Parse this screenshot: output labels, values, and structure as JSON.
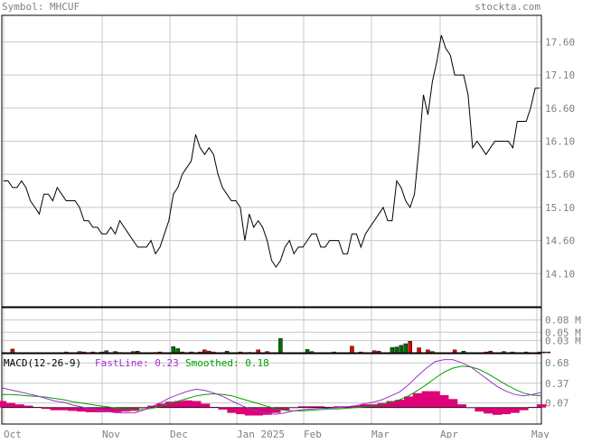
{
  "header": {
    "symbol_label": "Symbol: MHCUF",
    "site": "stockta.com"
  },
  "colors": {
    "text": "#808080",
    "grid": "#c8c8c8",
    "price_line": "#000000",
    "vol_up": "#007000",
    "vol_down": "#e00000",
    "hist": "#dd0077",
    "fast": "#a030d0",
    "smooth": "#00a000",
    "macd_label": "#000000"
  },
  "macd_legend": {
    "label": "MACD(12-26-9)",
    "fast_label": "FastLine: 0.23",
    "smooth_label": "Smoothed: 0.18"
  },
  "x_labels": [
    "Oct",
    "Nov",
    "Dec",
    "Jan 2025",
    "Feb",
    "Mar",
    "Apr",
    "May"
  ],
  "chart_data": [
    {
      "type": "line",
      "panel": "price",
      "ylim": [
        13.6,
        18.0
      ],
      "y_ticks": [
        "17.60",
        "17.10",
        "16.60",
        "16.10",
        "15.60",
        "15.10",
        "14.60",
        "14.10"
      ],
      "y_tick_values": [
        17.6,
        17.1,
        16.6,
        16.1,
        15.6,
        15.1,
        14.6,
        14.1
      ],
      "x_tick_months": [
        "Oct",
        "Nov",
        "Dec",
        "Jan 2025",
        "Feb",
        "Mar",
        "Apr",
        "May"
      ],
      "grid": true,
      "series": [
        {
          "values": [
            15.5,
            15.5,
            15.4,
            15.4,
            15.5,
            15.4,
            15.2,
            15.1,
            15.0,
            15.3,
            15.3,
            15.2,
            15.4,
            15.3,
            15.2,
            15.2,
            15.2,
            15.1,
            14.9,
            14.9,
            14.8,
            14.8,
            14.7,
            14.7,
            14.8,
            14.7,
            14.9,
            14.8,
            14.7,
            14.6,
            14.5,
            14.5,
            14.5,
            14.6,
            14.4,
            14.5,
            14.7,
            14.9,
            15.3,
            15.4,
            15.6,
            15.7,
            15.8,
            16.2,
            16.0,
            15.9,
            16.0,
            15.9,
            15.6,
            15.4,
            15.3,
            15.2,
            15.2,
            15.1,
            14.6,
            15.0,
            14.8,
            14.9,
            14.8,
            14.6,
            14.3,
            14.2,
            14.3,
            14.5,
            14.6,
            14.4,
            14.5,
            14.5,
            14.6,
            14.7,
            14.7,
            14.5,
            14.5,
            14.6,
            14.6,
            14.6,
            14.4,
            14.4,
            14.7,
            14.7,
            14.5,
            14.7,
            14.8,
            14.9,
            15.0,
            15.1,
            14.9,
            14.9,
            15.5,
            15.4,
            15.2,
            15.1,
            15.3,
            16.0,
            16.8,
            16.5,
            17.0,
            17.3,
            17.7,
            17.5,
            17.4,
            17.1,
            17.1,
            17.1,
            16.8,
            16.0,
            16.1,
            16.0,
            15.9,
            16.0,
            16.1,
            16.1,
            16.1,
            16.1,
            16.0,
            16.4,
            16.4,
            16.4,
            16.6,
            16.9,
            16.9
          ]
        }
      ]
    },
    {
      "type": "bar",
      "panel": "volume",
      "ylim": [
        0,
        0.11
      ],
      "y_ticks": [
        "0.08 M",
        "0.05 M",
        "0.03 M"
      ],
      "y_tick_values": [
        0.08,
        0.05,
        0.03
      ],
      "series": [
        {
          "direction": "up",
          "points": [
            [
              23,
              0.005
            ],
            [
              25,
              0.003
            ],
            [
              30,
              0.004
            ],
            [
              38,
              0.015
            ],
            [
              39,
              0.01
            ],
            [
              50,
              0.004
            ],
            [
              62,
              0.035
            ],
            [
              68,
              0.008
            ],
            [
              69,
              0.003
            ],
            [
              87,
              0.013
            ],
            [
              88,
              0.014
            ],
            [
              89,
              0.018
            ],
            [
              90,
              0.022
            ],
            [
              103,
              0.004
            ],
            [
              112,
              0.003
            ],
            [
              117,
              0.002
            ]
          ]
        },
        {
          "direction": "down",
          "points": [
            [
              2,
              0.009
            ],
            [
              14,
              0.002
            ],
            [
              17,
              0.003
            ],
            [
              18,
              0.002
            ],
            [
              20,
              0.002
            ],
            [
              29,
              0.003
            ],
            [
              44,
              0.002
            ],
            [
              45,
              0.007
            ],
            [
              47,
              0.002
            ],
            [
              53,
              0.002
            ],
            [
              55,
              0.001
            ],
            [
              57,
              0.007
            ],
            [
              59,
              0.003
            ],
            [
              74,
              0.002
            ],
            [
              78,
              0.016
            ],
            [
              80,
              0.002
            ],
            [
              83,
              0.005
            ],
            [
              84,
              0.004
            ],
            [
              91,
              0.028
            ],
            [
              93,
              0.012
            ],
            [
              95,
              0.007
            ],
            [
              96,
              0.003
            ],
            [
              101,
              0.007
            ],
            [
              108,
              0.002
            ],
            [
              109,
              0.004
            ],
            [
              114,
              0.002
            ],
            [
              120,
              0.002
            ],
            [
              121,
              0.002
            ],
            [
              122,
              0.002
            ],
            [
              40,
              0.002
            ],
            [
              42,
              0.002
            ],
            [
              46,
              0.004
            ],
            [
              35,
              0.002
            ],
            [
              34,
              0.001
            ],
            [
              26,
              0.001
            ],
            [
              22,
              0.002
            ]
          ]
        }
      ]
    },
    {
      "type": "line",
      "panel": "macd",
      "ylim": [
        -0.25,
        0.82
      ],
      "y_ticks": [
        "0.68",
        "0.37",
        "0.07"
      ],
      "y_tick_values": [
        0.68,
        0.37,
        0.07
      ],
      "series": [
        {
          "name": "FastLine",
          "values": [
            0.3,
            0.27,
            0.24,
            0.21,
            0.18,
            0.14,
            0.1,
            0.08,
            0.04,
            0.01,
            -0.02,
            -0.04,
            -0.06,
            -0.08,
            -0.08,
            -0.08,
            -0.04,
            0.02,
            0.08,
            0.15,
            0.2,
            0.25,
            0.28,
            0.26,
            0.22,
            0.17,
            0.1,
            0.04,
            -0.02,
            -0.06,
            -0.09,
            -0.1,
            -0.08,
            -0.05,
            -0.03,
            -0.02,
            -0.01,
            -0.01,
            0.0,
            0.01,
            0.03,
            0.06,
            0.08,
            0.12,
            0.18,
            0.24,
            0.35,
            0.48,
            0.6,
            0.7,
            0.73,
            0.73,
            0.68,
            0.62,
            0.52,
            0.42,
            0.32,
            0.25,
            0.2,
            0.18,
            0.2,
            0.23
          ]
        },
        {
          "name": "Smoothed",
          "values": [
            0.2,
            0.2,
            0.19,
            0.18,
            0.17,
            0.16,
            0.14,
            0.12,
            0.09,
            0.07,
            0.05,
            0.03,
            0.01,
            -0.01,
            -0.02,
            -0.03,
            -0.03,
            -0.01,
            0.02,
            0.06,
            0.1,
            0.14,
            0.18,
            0.2,
            0.21,
            0.2,
            0.18,
            0.14,
            0.1,
            0.06,
            0.02,
            -0.02,
            -0.04,
            -0.05,
            -0.05,
            -0.04,
            -0.03,
            -0.02,
            -0.02,
            -0.01,
            0.0,
            0.01,
            0.03,
            0.05,
            0.08,
            0.12,
            0.18,
            0.26,
            0.35,
            0.45,
            0.54,
            0.6,
            0.63,
            0.62,
            0.58,
            0.51,
            0.43,
            0.35,
            0.28,
            0.22,
            0.19,
            0.18
          ]
        }
      ]
    }
  ]
}
